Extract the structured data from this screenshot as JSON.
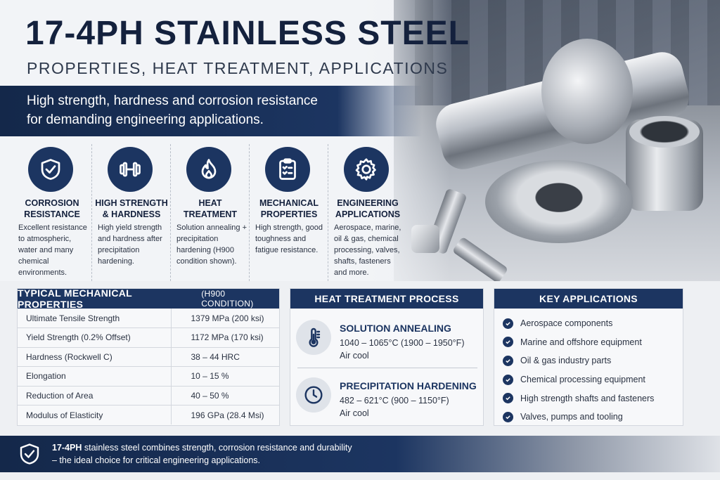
{
  "header": {
    "title": "17-4PH STAINLESS STEEL",
    "subtitle": "PROPERTIES, HEAT TREATMENT, APPLICATIONS",
    "banner_line1": "High strength, hardness and corrosion resistance",
    "banner_line2": "for demanding engineering applications."
  },
  "features": [
    {
      "icon": "shield-check-icon",
      "title_line1": "CORROSION",
      "title_line2": "RESISTANCE",
      "desc": "Excellent resistance to atmospheric, water and many chemical environments."
    },
    {
      "icon": "dumbbell-icon",
      "title_line1": "HIGH STRENGTH",
      "title_line2": "& HARDNESS",
      "desc": "High yield strength and hardness after precipitation hardening."
    },
    {
      "icon": "flame-icon",
      "title_line1": "HEAT",
      "title_line2": "TREATMENT",
      "desc": "Solution annealing + precipitation hardening (H900 condition shown)."
    },
    {
      "icon": "clipboard-checklist-icon",
      "title_line1": "MECHANICAL",
      "title_line2": "PROPERTIES",
      "desc": "High strength, good toughness and fatigue resistance."
    },
    {
      "icon": "gear-icon",
      "title_line1": "ENGINEERING",
      "title_line2": "APPLICATIONS",
      "desc": "Aerospace, marine, oil & gas, chemical processing, valves, shafts, fasteners and more."
    }
  ],
  "mechanical": {
    "heading": "TYPICAL MECHANICAL PROPERTIES",
    "heading_condition": "(H900 CONDITION)",
    "rows": [
      {
        "property": "Ultimate Tensile Strength",
        "value": "1379 MPa (200 ksi)"
      },
      {
        "property": "Yield Strength (0.2% Offset)",
        "value": "1172 MPa (170 ksi)"
      },
      {
        "property": "Hardness (Rockwell C)",
        "value": "38 – 44 HRC"
      },
      {
        "property": "Elongation",
        "value": "10 – 15 %"
      },
      {
        "property": "Reduction of Area",
        "value": "40 – 50 %"
      },
      {
        "property": "Modulus of Elasticity",
        "value": "196 GPa (28.4 Msi)"
      }
    ]
  },
  "heat": {
    "heading": "HEAT TREATMENT PROCESS",
    "steps": [
      {
        "icon": "thermometer-icon",
        "title": "SOLUTION ANNEALING",
        "temp": "1040 – 1065°C (1900 – 1950°F)",
        "note": "Air cool"
      },
      {
        "icon": "clock-icon",
        "title": "PRECIPITATION HARDENING",
        "temp": "482 – 621°C (900 – 1150°F)",
        "note": "Air cool"
      }
    ]
  },
  "applications": {
    "heading": "KEY APPLICATIONS",
    "items": [
      "Aerospace components",
      "Marine and offshore equipment",
      "Oil & gas industry parts",
      "Chemical processing equipment",
      "High strength shafts and fasteners",
      "Valves, pumps and tooling"
    ]
  },
  "footer": {
    "icon": "shield-check-icon",
    "brand": "17-4PH",
    "line1_rest": " stainless steel combines strength, corrosion resistance and durability",
    "line2": "– the ideal choice for critical engineering applications."
  },
  "colors": {
    "navy": "#1c3561",
    "dark_navy": "#14213d",
    "white": "#ffffff"
  }
}
